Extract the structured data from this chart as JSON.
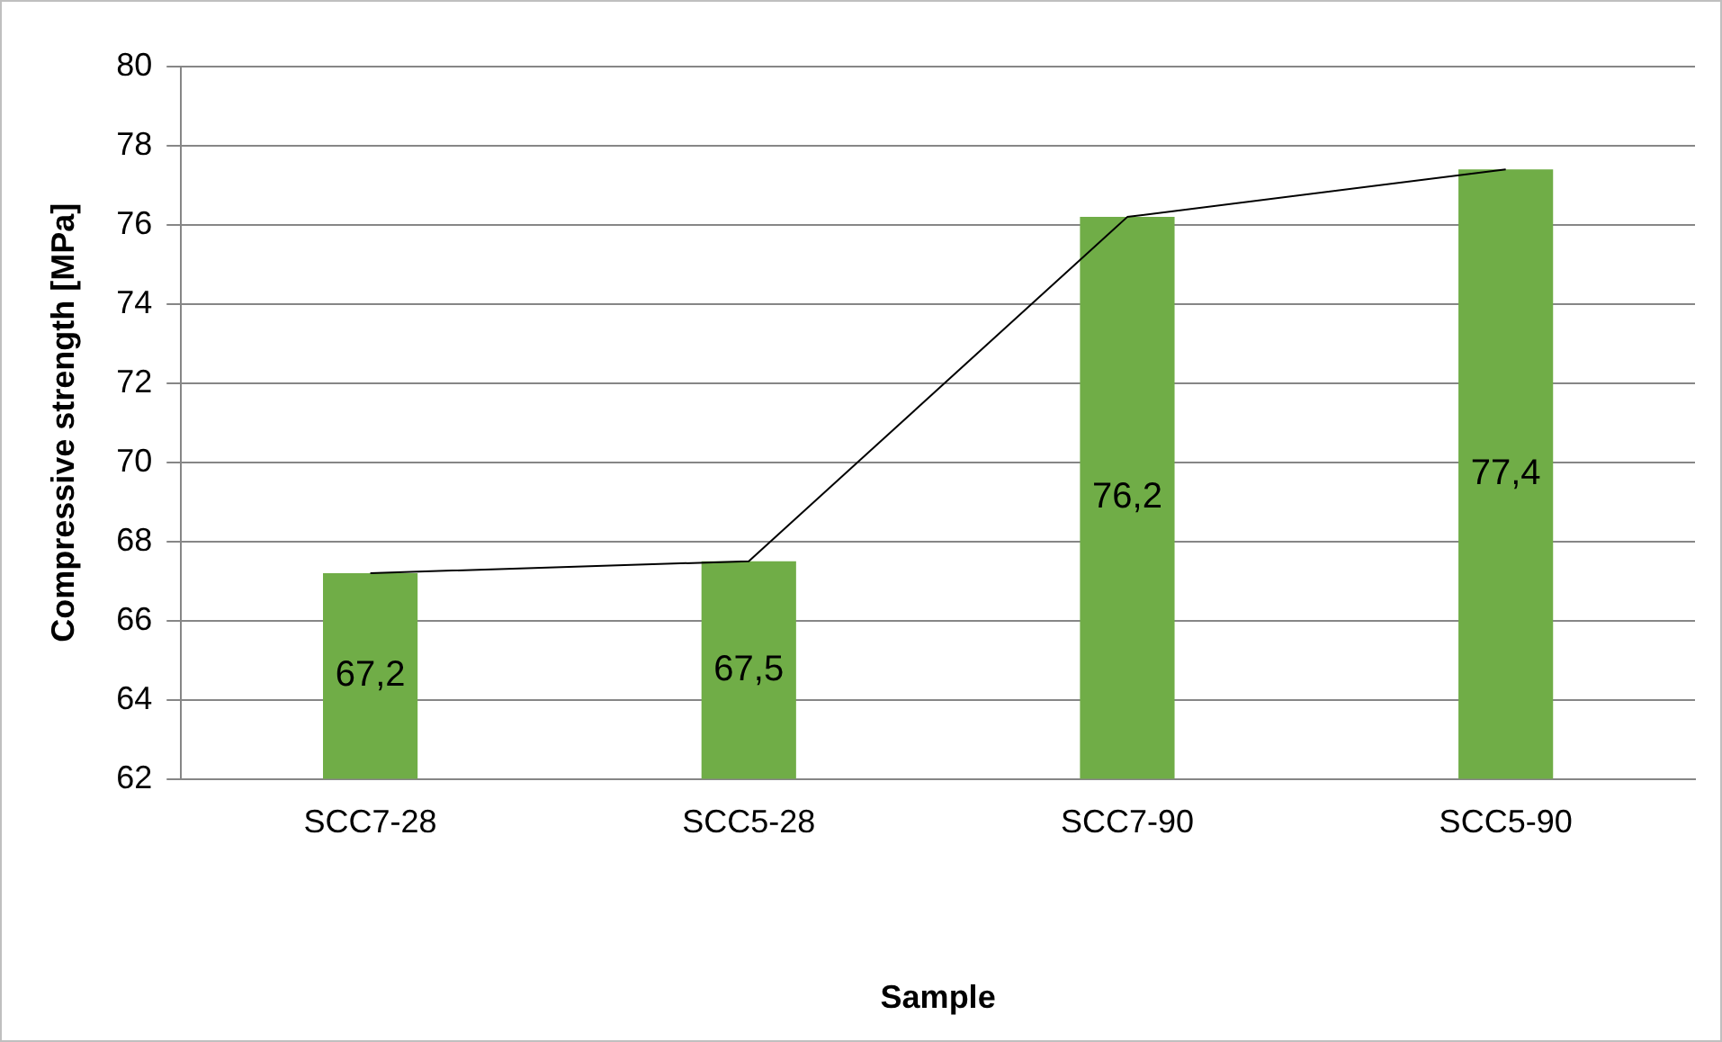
{
  "chart_data": {
    "type": "bar",
    "xlabel": "Sample",
    "ylabel": "Compressive strength [MPa]",
    "categories": [
      "SCC7-28",
      "SCC5-28",
      "SCC7-90",
      "SCC5-90"
    ],
    "series": [
      {
        "color": "#70ad47",
        "values": [
          67.2,
          67.5,
          76.2,
          77.4
        ],
        "value_labels": [
          "67,2",
          "67,5",
          "76,2",
          "77,4"
        ]
      },
      {
        "type": "line",
        "color": "#000000",
        "values": [
          67.2,
          67.5,
          76.2,
          77.4
        ]
      }
    ],
    "ylim": [
      62,
      80
    ],
    "yticks": [
      62,
      64,
      66,
      68,
      70,
      72,
      74,
      76,
      78,
      80
    ],
    "grid": "y",
    "marker": "none",
    "line_style": "solid"
  }
}
